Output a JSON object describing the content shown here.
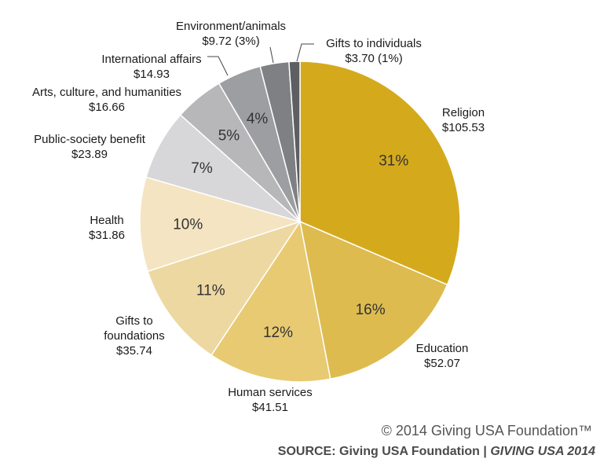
{
  "chart_data": {
    "type": "pie",
    "slices": [
      {
        "name": "Religion",
        "amount": "$105.53",
        "value": 105.53,
        "pct_label": "31%",
        "color": "#D4AA1C"
      },
      {
        "name": "Education",
        "amount": "$52.07",
        "value": 52.07,
        "pct_label": "16%",
        "color": "#DDBB4F"
      },
      {
        "name": "Human services",
        "amount": "$41.51",
        "value": 41.51,
        "pct_label": "12%",
        "color": "#E7CA72"
      },
      {
        "name": "Gifts to foundations",
        "label_lines": [
          "Gifts to",
          "foundations",
          "$35.74"
        ],
        "amount": "$35.74",
        "value": 35.74,
        "pct_label": "11%",
        "color": "#EDD8A2"
      },
      {
        "name": "Health",
        "amount": "$31.86",
        "value": 31.86,
        "pct_label": "10%",
        "color": "#F4E4C1"
      },
      {
        "name": "Public-society benefit",
        "amount": "$23.89",
        "value": 23.89,
        "pct_label": "7%",
        "color": "#D7D7D9"
      },
      {
        "name": "Arts, culture, and humanities",
        "amount": "$16.66",
        "value": 16.66,
        "pct_label": "5%",
        "color": "#B7B7BA"
      },
      {
        "name": "International affairs",
        "amount": "$14.93",
        "value": 14.93,
        "pct_label": "4%",
        "color": "#9D9EA1"
      },
      {
        "name": "Environment/animals",
        "amount": "$9.72 (3%)",
        "value": 9.72,
        "pct_label": "",
        "color": "#7F8083"
      },
      {
        "name": "Gifts to individuals",
        "amount": "$3.70 (1%)",
        "value": 3.7,
        "pct_label": "",
        "color": "#5E5F62"
      }
    ],
    "start_angle": "12 o'clock",
    "direction": "clockwise",
    "title": "",
    "legend": "none"
  },
  "footer": {
    "copyright": "© 2014 Giving USA Foundation™",
    "source_prefix": "SOURCE: Giving USA Foundation | ",
    "source_italic": "GIVING USA 2014"
  }
}
